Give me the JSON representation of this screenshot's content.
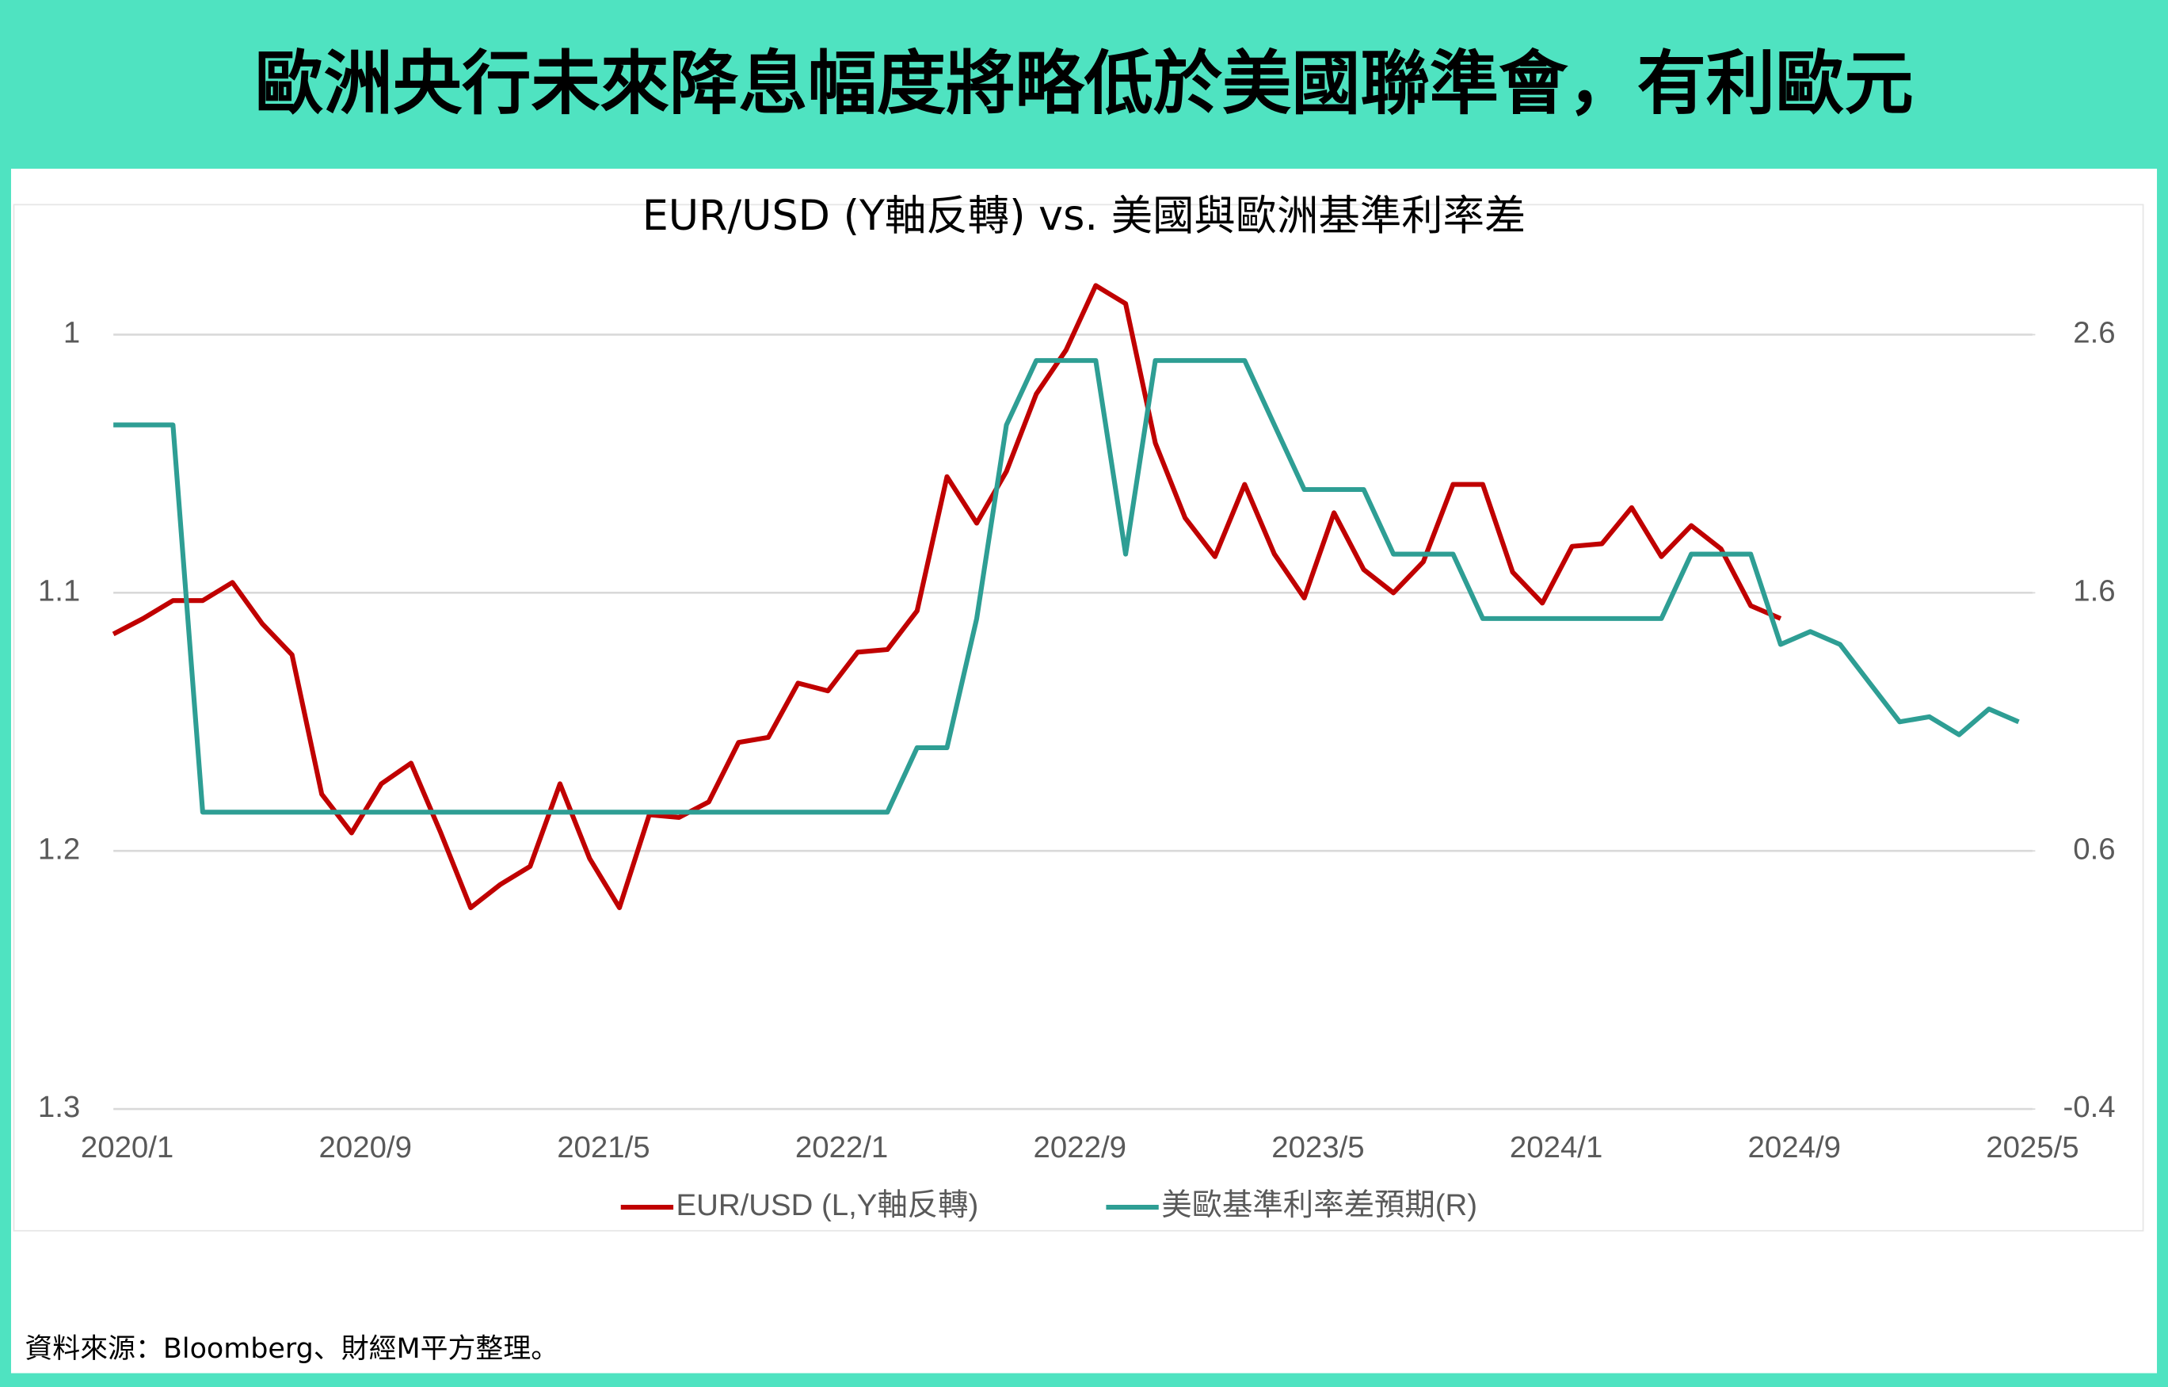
{
  "header": {
    "title": "歐洲央行未來降息幅度將略低於美國聯準會，有利歐元"
  },
  "chart_data": {
    "type": "line",
    "title": "EUR/USD (Y軸反轉) vs. 美國與歐洲基準利率差",
    "categories": [
      "2020/1",
      null,
      null,
      null,
      null,
      null,
      null,
      null,
      "2020/9",
      null,
      null,
      null,
      null,
      null,
      null,
      null,
      "2021/5",
      null,
      null,
      null,
      null,
      null,
      null,
      null,
      "2022/1",
      null,
      null,
      null,
      null,
      null,
      null,
      null,
      "2022/9",
      null,
      null,
      null,
      null,
      null,
      null,
      null,
      "2023/5",
      null,
      null,
      null,
      null,
      null,
      null,
      null,
      "2024/1",
      null,
      null,
      null,
      null,
      null,
      null,
      null,
      "2024/9",
      null,
      null,
      null,
      null,
      null,
      null,
      null,
      "2025/5"
    ],
    "series": [
      {
        "name": "EUR/USD (L,Y軸反轉)",
        "color": "#c00000",
        "axis": "y",
        "values": [
          1.116,
          1.11,
          1.103,
          1.103,
          1.096,
          1.112,
          1.124,
          1.178,
          1.193,
          1.174,
          1.166,
          1.193,
          1.222,
          1.213,
          1.206,
          1.174,
          1.203,
          1.222,
          1.186,
          1.187,
          1.181,
          1.158,
          1.156,
          1.135,
          1.138,
          1.123,
          1.122,
          1.107,
          1.055,
          1.073,
          1.053,
          1.023,
          1.006,
          0.981,
          0.988,
          1.042,
          1.071,
          1.086,
          1.058,
          1.085,
          1.102,
          1.069,
          1.091,
          1.1,
          1.088,
          1.058,
          1.058,
          1.092,
          1.104,
          1.082,
          1.081,
          1.067,
          1.086,
          1.074,
          1.083,
          1.105,
          1.11,
          null,
          null,
          null,
          null,
          null,
          null,
          null,
          null
        ]
      },
      {
        "name": "美歐基準利率差預期(R)",
        "color": "#2e9e94",
        "axis": "y2",
        "values": [
          2.25,
          2.25,
          2.25,
          0.75,
          0.75,
          0.75,
          0.75,
          0.75,
          0.75,
          0.75,
          0.75,
          0.75,
          0.75,
          0.75,
          0.75,
          0.75,
          0.75,
          0.75,
          0.75,
          0.75,
          0.75,
          0.75,
          0.75,
          0.75,
          0.75,
          0.75,
          0.75,
          1.0,
          1.0,
          1.5,
          2.25,
          2.5,
          2.5,
          2.5,
          1.75,
          2.5,
          2.5,
          2.5,
          2.5,
          2.25,
          2.0,
          2.0,
          2.0,
          1.75,
          1.75,
          1.75,
          1.5,
          1.5,
          1.5,
          1.5,
          1.5,
          1.5,
          1.5,
          1.75,
          1.75,
          1.75,
          1.4,
          1.45,
          1.4,
          1.25,
          1.1,
          1.12,
          1.05,
          1.15,
          1.1
        ]
      }
    ],
    "ylim": [
      1,
      1.3
    ],
    "y_inverted": true,
    "yticks": [
      1,
      1.1,
      1.2,
      1.3
    ],
    "y2lim": [
      -0.4,
      2.6
    ],
    "y2ticks": [
      2.6,
      1.6,
      0.6,
      -0.4
    ],
    "grid": true,
    "legend": "bottom"
  },
  "source": "資料來源：Bloomberg、財經M平方整理。"
}
